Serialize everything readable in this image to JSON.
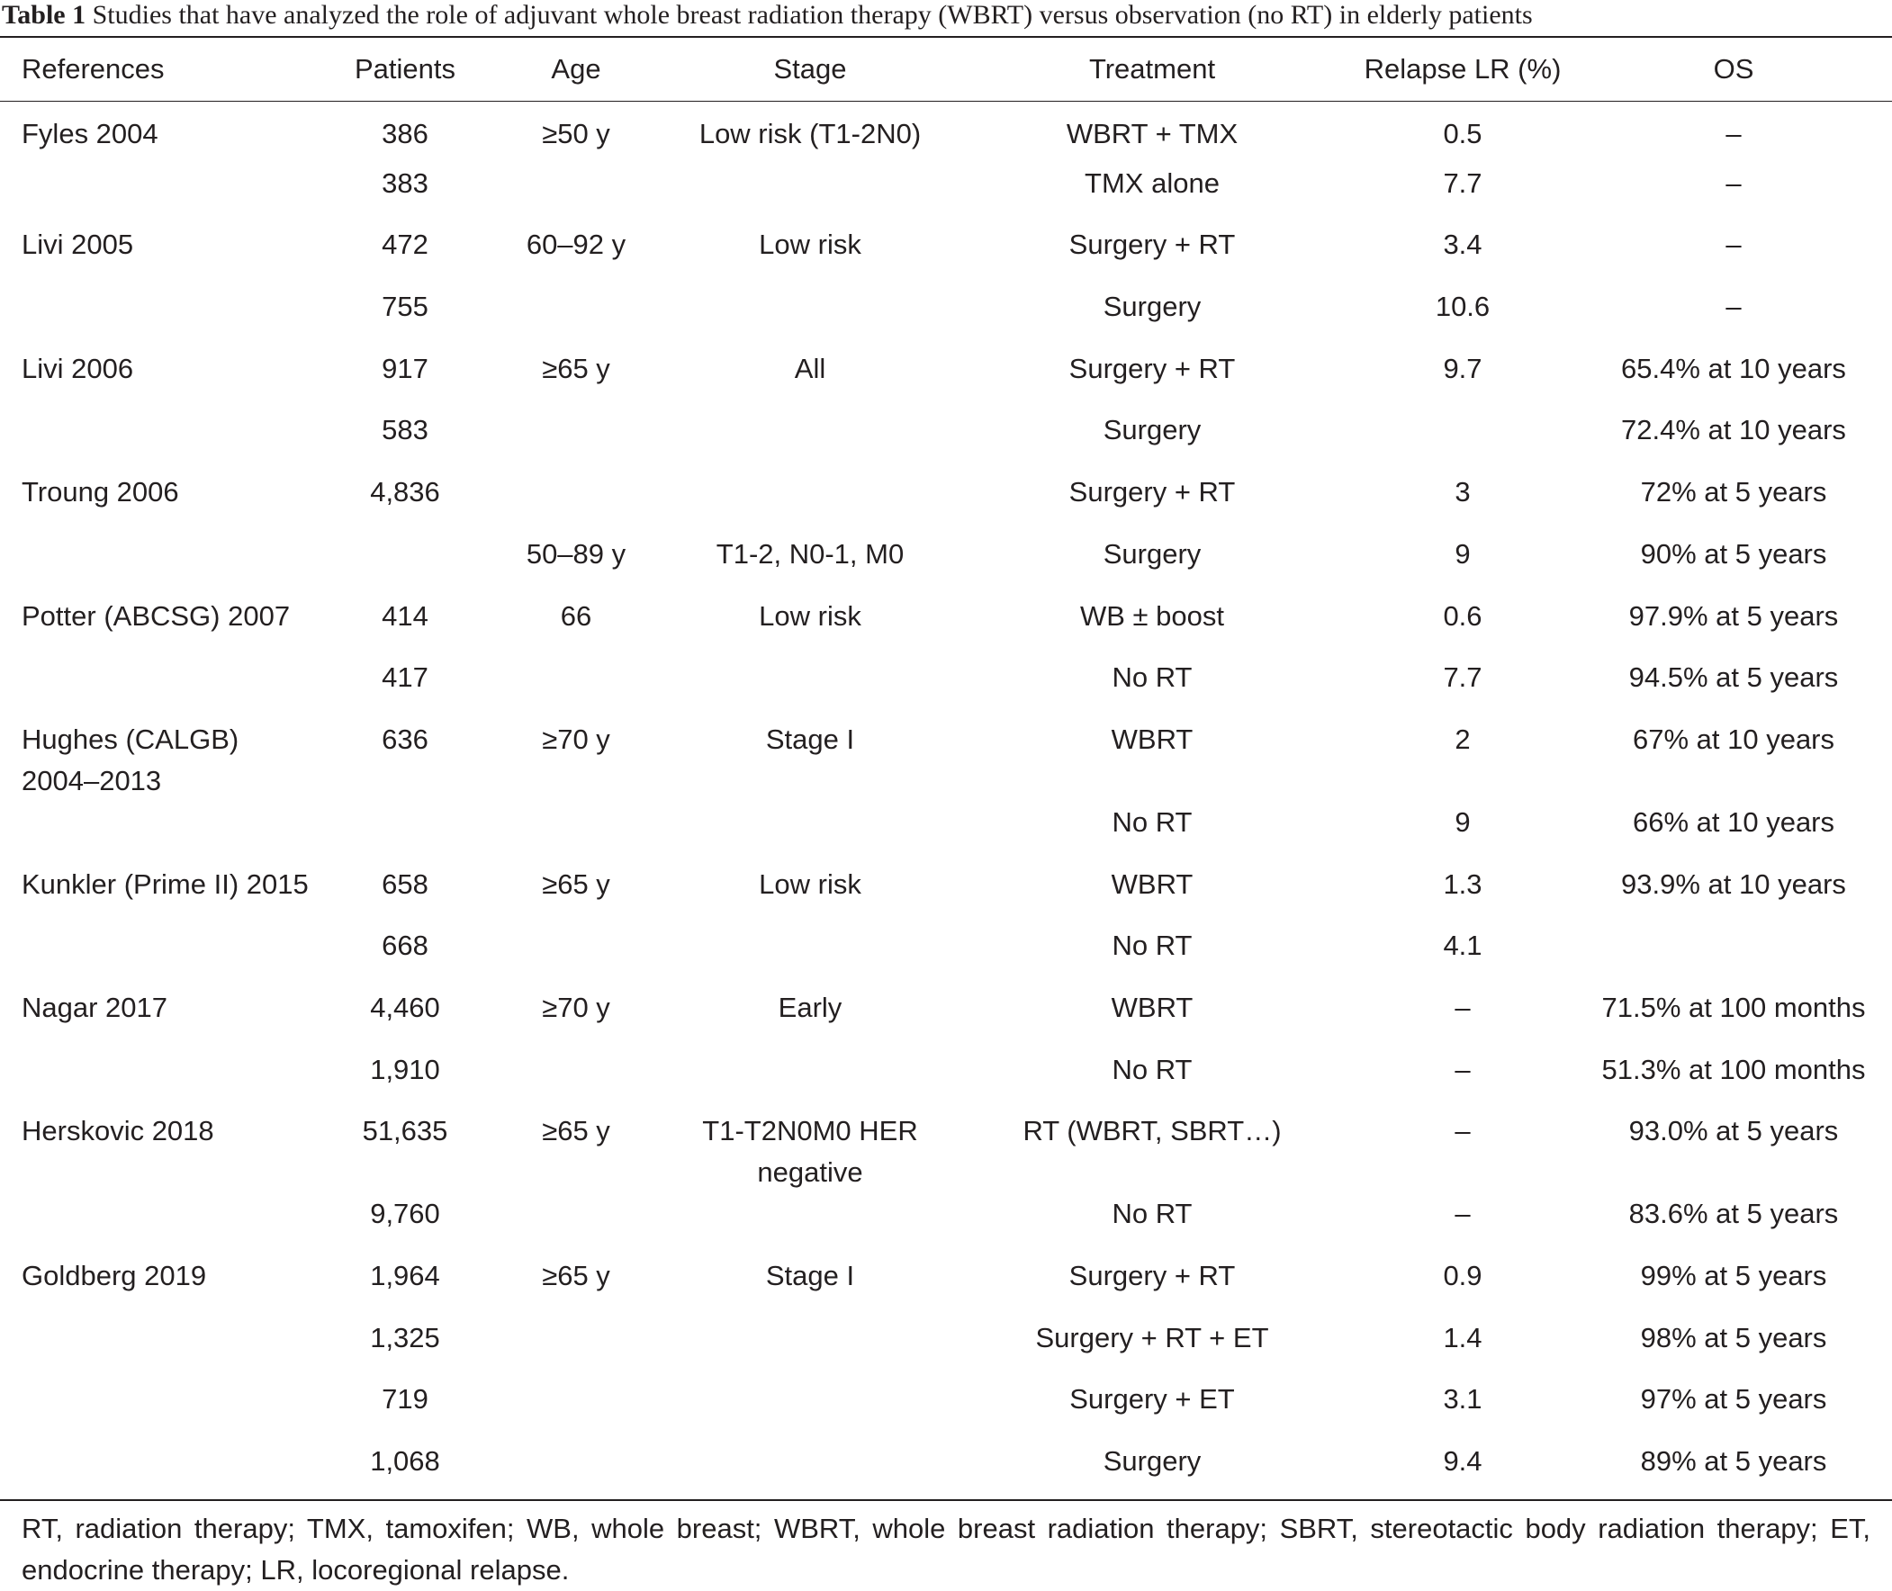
{
  "caption": {
    "label": "Table 1",
    "text": " Studies that have analyzed the role of adjuvant whole breast radiation therapy (WBRT) versus observation (no RT) in elderly patients"
  },
  "table": {
    "headers": [
      "References",
      "Patients",
      "Age",
      "Stage",
      "Treatment",
      "Relapse LR (%)",
      "OS"
    ],
    "rows": [
      [
        "Fyles 2004",
        "386",
        "≥50 y",
        "Low risk (T1-2N0)",
        "WBRT + TMX",
        "0.5",
        "–"
      ],
      [
        "",
        "383",
        "",
        "",
        "TMX alone",
        "7.7",
        "–"
      ],
      [
        "Livi 2005",
        "472",
        "60–92 y",
        "Low risk",
        "Surgery + RT",
        "3.4",
        "–"
      ],
      [
        "",
        "755",
        "",
        "",
        "Surgery",
        "10.6",
        "–"
      ],
      [
        "Livi 2006",
        "917",
        "≥65 y",
        "All",
        "Surgery + RT",
        "9.7",
        "65.4% at 10 years"
      ],
      [
        "",
        "583",
        "",
        "",
        "Surgery",
        "",
        "72.4% at 10 years"
      ],
      [
        "Troung 2006",
        "4,836",
        "",
        "",
        "Surgery + RT",
        "3",
        "72% at 5 years"
      ],
      [
        "",
        "",
        "50–89 y",
        "T1-2, N0-1, M0",
        "Surgery",
        "9",
        "90% at 5 years"
      ],
      [
        "Potter (ABCSG) 2007",
        "414",
        "66",
        "Low risk",
        "WB ± boost",
        "0.6",
        "97.9% at 5 years"
      ],
      [
        "",
        "417",
        "",
        "",
        "No RT",
        "7.7",
        "94.5% at 5 years"
      ],
      [
        "Hughes (CALGB) 2004–2013",
        "636",
        "≥70 y",
        "Stage I",
        "WBRT",
        "2",
        "67% at 10 years"
      ],
      [
        "",
        "",
        "",
        "",
        "No RT",
        "9",
        "66% at 10 years"
      ],
      [
        "Kunkler (Prime II) 2015",
        "658",
        "≥65 y",
        "Low risk",
        "WBRT",
        "1.3",
        "93.9% at 10 years"
      ],
      [
        "",
        "668",
        "",
        "",
        "No RT",
        "4.1",
        ""
      ],
      [
        "Nagar 2017",
        "4,460",
        "≥70 y",
        "Early",
        "WBRT",
        "–",
        "71.5% at 100 months"
      ],
      [
        "",
        "1,910",
        "",
        "",
        "No RT",
        "–",
        "51.3% at 100 months"
      ],
      [
        "Herskovic 2018",
        "51,635",
        "≥65 y",
        "T1-T2N0M0 HER negative",
        "RT (WBRT, SBRT…)",
        "–",
        "93.0% at 5 years"
      ],
      [
        "",
        "9,760",
        "",
        "",
        "No RT",
        "–",
        "83.6% at 5 years"
      ],
      [
        "Goldberg 2019",
        "1,964",
        "≥65 y",
        "Stage I",
        "Surgery + RT",
        "0.9",
        "99% at 5 years"
      ],
      [
        "",
        "1,325",
        "",
        "",
        "Surgery + RT + ET",
        "1.4",
        "98% at 5 years"
      ],
      [
        "",
        "719",
        "",
        "",
        "Surgery + ET",
        "3.1",
        "97% at 5 years"
      ],
      [
        "",
        "1,068",
        "",
        "",
        "Surgery",
        "9.4",
        "89% at 5 years"
      ]
    ]
  },
  "footnote": "RT, radiation therapy; TMX, tamoxifen; WB, whole breast; WBRT, whole breast radiation therapy; SBRT, stereotactic body radiation therapy; ET, endocrine therapy; LR, locoregional relapse."
}
